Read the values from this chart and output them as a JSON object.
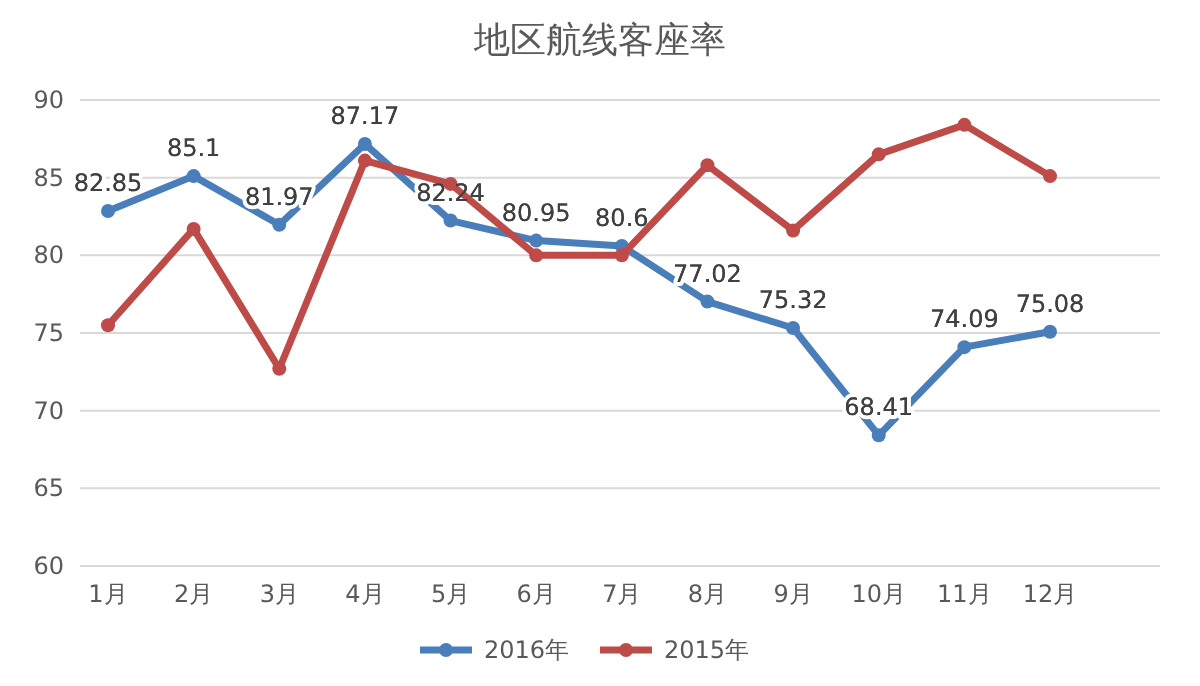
{
  "chart_data": {
    "type": "line",
    "title": "地区航线客座率",
    "categories": [
      "1月",
      "2月",
      "3月",
      "4月",
      "5月",
      "6月",
      "7月",
      "8月",
      "9月",
      "10月",
      "11月",
      "12月"
    ],
    "series": [
      {
        "name": "2016年",
        "color": "#4a7ebb",
        "values": [
          82.85,
          85.1,
          81.97,
          87.17,
          82.24,
          80.95,
          80.6,
          77.02,
          75.32,
          68.41,
          74.09,
          75.08
        ],
        "value_labels": [
          "82.85",
          "85.1",
          "81.97",
          "87.17",
          "82.24",
          "80.95",
          "80.6",
          "77.02",
          "75.32",
          "68.41",
          "74.09",
          "75.08"
        ]
      },
      {
        "name": "2015年",
        "color": "#be4b48",
        "values": [
          75.5,
          81.7,
          72.7,
          86.1,
          84.6,
          80.0,
          80.0,
          85.8,
          81.6,
          86.5,
          88.4,
          85.1
        ]
      }
    ],
    "ylim": [
      60,
      90
    ],
    "yticks": [
      60,
      65,
      70,
      75,
      80,
      85,
      90
    ],
    "grid": "y",
    "legend": "bottom",
    "marker": "circle",
    "line_style": "solid"
  }
}
